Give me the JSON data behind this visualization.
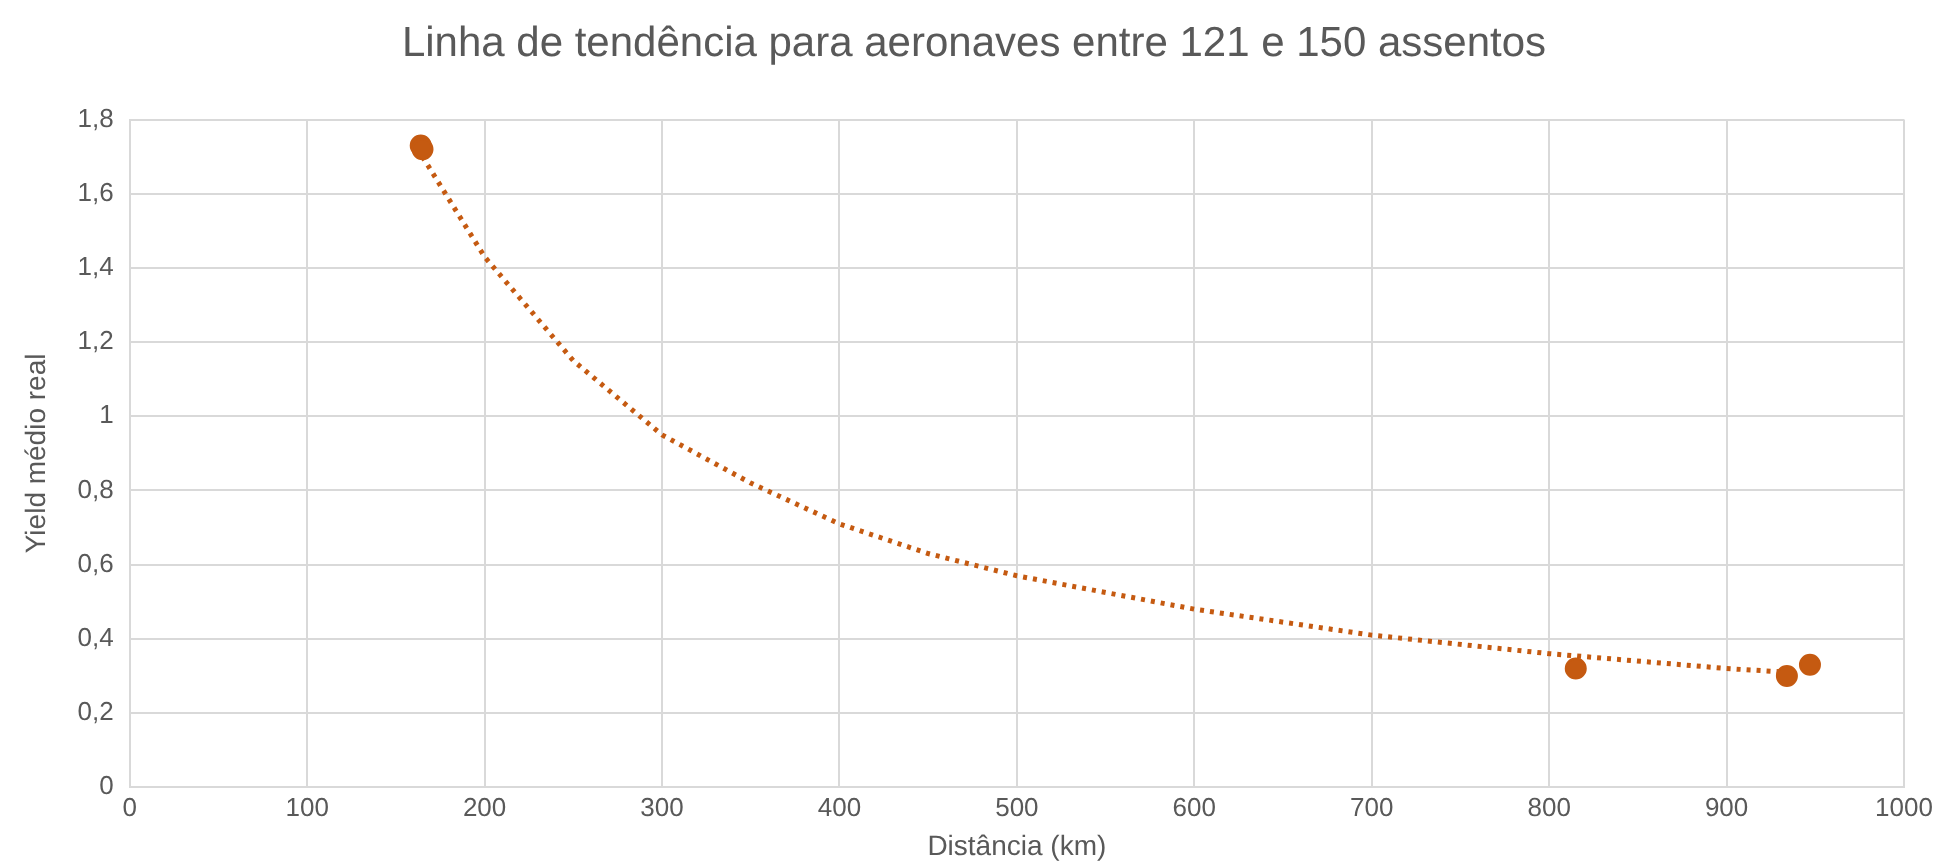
{
  "chart_data": {
    "type": "scatter",
    "title": "Linha de tendência para aeronaves entre 121 e 150 assentos",
    "xlabel": "Distância (km)",
    "ylabel": "Yield médio real",
    "xlim": [
      0,
      1000
    ],
    "xticks": [
      0,
      100,
      200,
      300,
      400,
      500,
      600,
      700,
      800,
      900,
      1000
    ],
    "ylim": [
      0,
      1.8
    ],
    "yticks": [
      0,
      {
        "value": 0.2,
        "label": "0,2"
      },
      {
        "value": 0.4,
        "label": "0,4"
      },
      {
        "value": 0.6,
        "label": "0,6"
      },
      {
        "value": 0.8,
        "label": "0,8"
      },
      1,
      {
        "value": 1.2,
        "label": "1,2"
      },
      {
        "value": 1.4,
        "label": "1,4"
      },
      {
        "value": 1.6,
        "label": "1,6"
      },
      {
        "value": 1.8,
        "label": "1,8"
      }
    ],
    "grid": true,
    "legend": false,
    "series": [
      {
        "type": "scatter",
        "color": "#c55a11",
        "marker": "circle",
        "x": [
          164,
          165,
          815,
          934,
          947
        ],
        "values": [
          1.73,
          1.72,
          0.32,
          0.3,
          0.33
        ]
      },
      {
        "type": "line",
        "color": "#c55a11",
        "marker": "none",
        "line_style": "dotted",
        "x": [
          165,
          200,
          250,
          300,
          350,
          400,
          450,
          500,
          600,
          700,
          800,
          900,
          934
        ],
        "values": [
          1.7,
          1.43,
          1.15,
          0.95,
          0.82,
          0.71,
          0.63,
          0.57,
          0.48,
          0.41,
          0.36,
          0.32,
          0.31
        ]
      }
    ]
  }
}
